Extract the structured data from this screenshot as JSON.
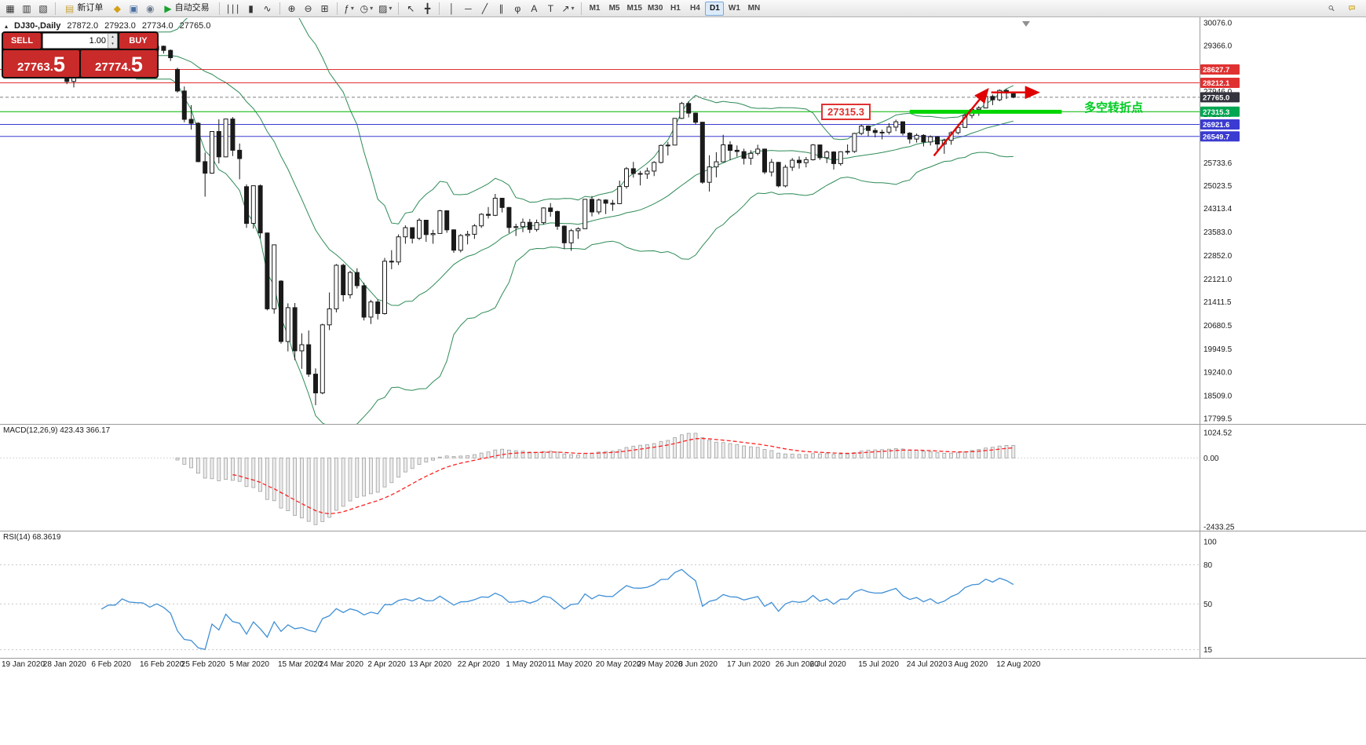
{
  "toolbar": {
    "items": [
      {
        "name": "charts-grid-icon",
        "glyph": "▦"
      },
      {
        "name": "profiles-icon",
        "glyph": "▥"
      },
      {
        "name": "market-watch-icon",
        "glyph": "▧"
      },
      {
        "divider": true
      },
      {
        "name": "new-order-button",
        "glyph": "▤",
        "glyph_color": "#caa53d",
        "label": "新订单"
      },
      {
        "name": "metaeditor-icon",
        "glyph": "◆",
        "glyph_color": "#d4a017"
      },
      {
        "name": "navigator-icon",
        "glyph": "▣",
        "glyph_color": "#4a6fa5"
      },
      {
        "name": "terminal-icon",
        "glyph": "◉",
        "glyph_color": "#6b7a8f"
      },
      {
        "name": "autotrading-button",
        "glyph": "▶",
        "glyph_color": "#18a12c",
        "label": "自动交易"
      },
      {
        "divider": true
      },
      {
        "name": "bar-chart-icon",
        "glyph": "∣∣∣"
      },
      {
        "name": "candle-chart-icon",
        "glyph": "▮"
      },
      {
        "name": "line-chart-icon",
        "glyph": "∿"
      },
      {
        "divider": true
      },
      {
        "name": "zoom-in-icon",
        "glyph": "⊕"
      },
      {
        "name": "zoom-out-icon",
        "glyph": "⊖"
      },
      {
        "name": "tile-windows-icon",
        "glyph": "⊞"
      },
      {
        "divider": true
      },
      {
        "name": "indicators-icon",
        "glyph": "ƒ",
        "caret": true
      },
      {
        "name": "periods-icon",
        "glyph": "◷",
        "caret": true
      },
      {
        "name": "templates-icon",
        "glyph": "▨",
        "caret": true
      },
      {
        "divider": true
      },
      {
        "name": "cursor-icon",
        "glyph": "↖"
      },
      {
        "name": "crosshair-icon",
        "glyph": "╋"
      },
      {
        "divider": true
      },
      {
        "name": "vertical-line-icon",
        "glyph": "│"
      },
      {
        "name": "horizontal-line-icon",
        "glyph": "─"
      },
      {
        "name": "trendline-icon",
        "glyph": "╱"
      },
      {
        "name": "channel-icon",
        "glyph": "∥"
      },
      {
        "name": "fibonacci-icon",
        "glyph": "φ"
      },
      {
        "name": "text-icon",
        "glyph": "A"
      },
      {
        "name": "label-icon",
        "glyph": "T"
      },
      {
        "name": "arrows-icon",
        "glyph": "↗",
        "caret": true
      },
      {
        "divider": true
      }
    ],
    "timeframes": [
      "M1",
      "M5",
      "M15",
      "M30",
      "H1",
      "H4",
      "D1",
      "W1",
      "MN"
    ],
    "active_timeframe": "D1"
  },
  "symbol_bar": {
    "collapse_glyph": "▴",
    "name": "DJ30-,Daily",
    "open": "27872.0",
    "high": "27923.0",
    "low": "27734.0",
    "close": "27765.0"
  },
  "trade_panel": {
    "sell_label": "SELL",
    "buy_label": "BUY",
    "volume": "1.00",
    "sell_price_main": "27763.",
    "sell_price_big": "5",
    "buy_price_main": "27774.",
    "buy_price_big": "5"
  },
  "annotations": {
    "level_label": "27315.3",
    "turning_point": "多空转折点"
  },
  "indicators": {
    "macd_label": "MACD(12,26,9) 423.43 366.17",
    "rsi_label": "RSI(14) 68.3619"
  },
  "price_scale": {
    "ticks": [
      "30076.0",
      "29366.0",
      "28656.0",
      "27946.0",
      "27236.0",
      "26526.0",
      "25733.6",
      "25023.5",
      "24313.4",
      "23583.0",
      "22852.0",
      "22121.0",
      "21411.5",
      "20680.5",
      "19949.5",
      "19240.0",
      "18509.0",
      "17799.5"
    ],
    "badges": [
      {
        "value": "28627.7",
        "color": "#e03131"
      },
      {
        "value": "28212.1",
        "color": "#e03131"
      },
      {
        "value": "27765.0",
        "color": "#34343f"
      },
      {
        "value": "27315.3",
        "color": "#00a651"
      },
      {
        "value": "26921.6",
        "color": "#3b3bd1"
      },
      {
        "value": "26549.7",
        "color": "#3b3bd1"
      }
    ]
  },
  "macd_scale": [
    "1024.52",
    "0.00",
    "-2433.25"
  ],
  "rsi_scale": [
    "100",
    "80",
    "50",
    "15"
  ],
  "chart_data": {
    "type": "candlestick",
    "symbol": "DJ30-",
    "timeframe": "Daily",
    "ohlc": [
      [
        29320,
        29410,
        29250,
        29348
      ],
      [
        29348,
        29370,
        29060,
        29196
      ],
      [
        29196,
        29320,
        29150,
        29186
      ],
      [
        29186,
        29300,
        29100,
        29160
      ],
      [
        29160,
        29230,
        28940,
        28989
      ],
      [
        28920,
        28950,
        28440,
        28535
      ],
      [
        28535,
        28790,
        28500,
        28722
      ],
      [
        28722,
        28940,
        28660,
        28734
      ],
      [
        28734,
        28900,
        28490,
        28859
      ],
      [
        28859,
        28890,
        28170,
        28256
      ],
      [
        28256,
        28480,
        28070,
        28399
      ],
      [
        28399,
        28840,
        28350,
        28807
      ],
      [
        28807,
        29310,
        28800,
        29290
      ],
      [
        29290,
        29408,
        29210,
        29379
      ],
      [
        29379,
        29410,
        29010,
        29102
      ],
      [
        29102,
        29300,
        29060,
        29276
      ],
      [
        29276,
        29415,
        29210,
        29276
      ],
      [
        29276,
        29568,
        29240,
        29551
      ],
      [
        29551,
        29570,
        29330,
        29423
      ],
      [
        29423,
        29480,
        29310,
        29398
      ],
      [
        29398,
        29430,
        29300,
        29390
      ],
      [
        29390,
        29420,
        29130,
        29232
      ],
      [
        29232,
        29360,
        29190,
        29348
      ],
      [
        29348,
        29369,
        29120,
        29219
      ],
      [
        29219,
        29250,
        28890,
        28992
      ],
      [
        28630,
        28680,
        27910,
        27960
      ],
      [
        27960,
        28100,
        26990,
        27081
      ],
      [
        27081,
        27520,
        26760,
        26957
      ],
      [
        26957,
        26990,
        25750,
        25766
      ],
      [
        25766,
        26050,
        24680,
        25409
      ],
      [
        25409,
        26710,
        25390,
        26703
      ],
      [
        26703,
        27080,
        25710,
        25917
      ],
      [
        25917,
        27100,
        25900,
        27090
      ],
      [
        27090,
        27150,
        25940,
        26121
      ],
      [
        26121,
        26330,
        25220,
        25864
      ],
      [
        24990,
        25060,
        23710,
        23851
      ],
      [
        23851,
        25030,
        23690,
        25018
      ],
      [
        25018,
        25060,
        23390,
        23553
      ],
      [
        23553,
        23570,
        21150,
        21200
      ],
      [
        21200,
        23190,
        21050,
        23185
      ],
      [
        22060,
        22090,
        20120,
        20188
      ],
      [
        20188,
        21370,
        19880,
        21237
      ],
      [
        21237,
        21380,
        19610,
        19898
      ],
      [
        19898,
        20440,
        19340,
        20087
      ],
      [
        20087,
        20530,
        19090,
        19173
      ],
      [
        19173,
        19350,
        18210,
        18591
      ],
      [
        18591,
        20740,
        18550,
        20704
      ],
      [
        20704,
        21710,
        20540,
        21200
      ],
      [
        21200,
        22590,
        21090,
        22552
      ],
      [
        22552,
        22600,
        21430,
        21636
      ],
      [
        21636,
        22380,
        21520,
        22327
      ],
      [
        22327,
        22460,
        21830,
        21917
      ],
      [
        21917,
        22010,
        20840,
        20943
      ],
      [
        20943,
        21480,
        20730,
        21413
      ],
      [
        21413,
        21490,
        20870,
        21052
      ],
      [
        21052,
        22780,
        21020,
        22679
      ],
      [
        22679,
        23020,
        22430,
        22653
      ],
      [
        22653,
        23510,
        22560,
        23433
      ],
      [
        23433,
        23790,
        23220,
        23719
      ],
      [
        23719,
        23730,
        23230,
        23390
      ],
      [
        23390,
        24010,
        23330,
        23949
      ],
      [
        23949,
        23960,
        23280,
        23504
      ],
      [
        23504,
        23650,
        23220,
        23537
      ],
      [
        23537,
        24270,
        23530,
        24242
      ],
      [
        24242,
        24260,
        23560,
        23650
      ],
      [
        23650,
        23670,
        22940,
        23018
      ],
      [
        23018,
        23520,
        22950,
        23475
      ],
      [
        23475,
        23620,
        23200,
        23515
      ],
      [
        23515,
        23830,
        23370,
        23775
      ],
      [
        23775,
        24170,
        23710,
        24133
      ],
      [
        24133,
        24360,
        24000,
        24101
      ],
      [
        24101,
        24765,
        24080,
        24633
      ],
      [
        24633,
        24640,
        24190,
        24345
      ],
      [
        24345,
        24360,
        23550,
        23723
      ],
      [
        23723,
        23840,
        23460,
        23749
      ],
      [
        23749,
        24000,
        23580,
        23883
      ],
      [
        23883,
        23990,
        23550,
        23664
      ],
      [
        23664,
        23970,
        23600,
        23875
      ],
      [
        23875,
        24350,
        23810,
        24331
      ],
      [
        24331,
        24480,
        24060,
        24221
      ],
      [
        24221,
        24250,
        23650,
        23764
      ],
      [
        23764,
        23790,
        23060,
        23247
      ],
      [
        23247,
        23680,
        23000,
        23625
      ],
      [
        23625,
        23730,
        23370,
        23685
      ],
      [
        23685,
        24600,
        23680,
        24597
      ],
      [
        24597,
        24700,
        24070,
        24206
      ],
      [
        24206,
        24620,
        24130,
        24575
      ],
      [
        24575,
        24600,
        24140,
        24474
      ],
      [
        24474,
        24580,
        24240,
        24465
      ],
      [
        24465,
        25180,
        24450,
        24995
      ],
      [
        24995,
        25600,
        24930,
        25548
      ],
      [
        25548,
        25760,
        25270,
        25400
      ],
      [
        25400,
        25480,
        25030,
        25383
      ],
      [
        25383,
        25580,
        25230,
        25475
      ],
      [
        25475,
        25780,
        25320,
        25742
      ],
      [
        25742,
        26300,
        25710,
        26269
      ],
      [
        26269,
        26380,
        25960,
        26281
      ],
      [
        26281,
        27120,
        26280,
        27110
      ],
      [
        27110,
        27620,
        27090,
        27572
      ],
      [
        27572,
        27640,
        27140,
        27272
      ],
      [
        27272,
        27290,
        26920,
        26989
      ],
      [
        26989,
        27000,
        25080,
        25128
      ],
      [
        25128,
        25965,
        24840,
        25605
      ],
      [
        25605,
        26060,
        25280,
        25763
      ],
      [
        25763,
        26600,
        25760,
        26289
      ],
      [
        26289,
        26400,
        25810,
        26119
      ],
      [
        26119,
        26270,
        25920,
        26080
      ],
      [
        26080,
        26170,
        25680,
        25871
      ],
      [
        25871,
        26120,
        25670,
        26024
      ],
      [
        26024,
        26290,
        25960,
        26156
      ],
      [
        26156,
        26170,
        25380,
        25445
      ],
      [
        25445,
        25850,
        25310,
        25745
      ],
      [
        25745,
        25760,
        24970,
        25015
      ],
      [
        25015,
        25670,
        24970,
        25595
      ],
      [
        25595,
        25880,
        25480,
        25812
      ],
      [
        25812,
        25930,
        25550,
        25734
      ],
      [
        25734,
        25910,
        25590,
        25827
      ],
      [
        25827,
        26310,
        25800,
        26287
      ],
      [
        26287,
        26290,
        25820,
        25890
      ],
      [
        25890,
        26110,
        25720,
        26067
      ],
      [
        26067,
        26090,
        25520,
        25706
      ],
      [
        25706,
        26090,
        25640,
        26075
      ],
      [
        26075,
        26300,
        25990,
        26085
      ],
      [
        26085,
        26660,
        26040,
        26642
      ],
      [
        26642,
        26920,
        26590,
        26870
      ],
      [
        26870,
        26890,
        26550,
        26734
      ],
      [
        26734,
        26810,
        26520,
        26671
      ],
      [
        26671,
        26760,
        26460,
        26680
      ],
      [
        26680,
        26960,
        26610,
        26840
      ],
      [
        26840,
        27070,
        26710,
        27005
      ],
      [
        27005,
        27010,
        26580,
        26652
      ],
      [
        26652,
        26680,
        26330,
        26469
      ],
      [
        26469,
        26640,
        26360,
        26584
      ],
      [
        26584,
        26620,
        26240,
        26379
      ],
      [
        26379,
        26580,
        26270,
        26539
      ],
      [
        26539,
        26560,
        26120,
        26313
      ],
      [
        26313,
        26480,
        26010,
        26428
      ],
      [
        26428,
        26710,
        26290,
        26664
      ],
      [
        26664,
        26940,
        26610,
        26828
      ],
      [
        26828,
        27270,
        26820,
        27201
      ],
      [
        27201,
        27420,
        27110,
        27386
      ],
      [
        27386,
        27490,
        27190,
        27433
      ],
      [
        27433,
        27840,
        27420,
        27791
      ],
      [
        27791,
        27850,
        27520,
        27686
      ],
      [
        27686,
        28010,
        27640,
        27977
      ],
      [
        27977,
        28020,
        27710,
        27897
      ],
      [
        27872,
        27923,
        27734,
        27765
      ]
    ],
    "date_labels": [
      {
        "bar": 0,
        "label": "19 Jan 2020"
      },
      {
        "bar": 6,
        "label": "28 Jan 2020"
      },
      {
        "bar": 13,
        "label": "6 Feb 2020"
      },
      {
        "bar": 20,
        "label": "16 Feb 2020"
      },
      {
        "bar": 26,
        "label": "25 Feb 2020"
      },
      {
        "bar": 33,
        "label": "5 Mar 2020"
      },
      {
        "bar": 40,
        "label": "15 Mar 2020"
      },
      {
        "bar": 46,
        "label": "24 Mar 2020"
      },
      {
        "bar": 53,
        "label": "2 Apr 2020"
      },
      {
        "bar": 59,
        "label": "13 Apr 2020"
      },
      {
        "bar": 66,
        "label": "22 Apr 2020"
      },
      {
        "bar": 73,
        "label": "1 May 2020"
      },
      {
        "bar": 79,
        "label": "11 May 2020"
      },
      {
        "bar": 86,
        "label": "20 May 2020"
      },
      {
        "bar": 92,
        "label": "29 May 2020"
      },
      {
        "bar": 98,
        "label": "8 Jun 2020"
      },
      {
        "bar": 105,
        "label": "17 Jun 2020"
      },
      {
        "bar": 112,
        "label": "26 Jun 2020"
      },
      {
        "bar": 117,
        "label": "6 Jul 2020"
      },
      {
        "bar": 124,
        "label": "15 Jul 2020"
      },
      {
        "bar": 131,
        "label": "24 Jul 2020"
      },
      {
        "bar": 137,
        "label": "3 Aug 2020"
      },
      {
        "bar": 144,
        "label": "12 Aug 2020"
      }
    ],
    "hlines": [
      {
        "value": 28627.7,
        "color": "#e03131",
        "width": 1
      },
      {
        "value": 28212.1,
        "color": "#e03131",
        "width": 1
      },
      {
        "value": 27765.0,
        "color": "#808080",
        "width": 1,
        "dash": "4 3"
      },
      {
        "value": 27315.3,
        "color": "#00b300",
        "width": 1
      },
      {
        "value": 26921.6,
        "color": "#3b3bd1",
        "width": 1
      },
      {
        "value": 26549.7,
        "color": "#3b3bd1",
        "width": 1
      }
    ],
    "support_segment": {
      "value": 27315.3,
      "from_bar": 131,
      "to_bar": 153,
      "color": "#00d500",
      "width": 5
    },
    "trend_arrows": [
      {
        "type": "diagonal",
        "from_bar": 134.5,
        "from_price": 25950,
        "to_bar": 142.3,
        "to_price": 28010
      },
      {
        "type": "horizontal",
        "from_bar": 142.8,
        "to_bar": 149.6,
        "price": 27915
      }
    ],
    "indicator_settings": {
      "bollinger_period": 20,
      "bollinger_deviation": 2,
      "macd": [
        12,
        26,
        9
      ],
      "rsi_period": 14
    },
    "y_axis_range": [
      17799.5,
      30076.0
    ],
    "macd_axis_range": [
      -2433.25,
      1024.52
    ],
    "rsi_axis_range": [
      10,
      100
    ]
  }
}
